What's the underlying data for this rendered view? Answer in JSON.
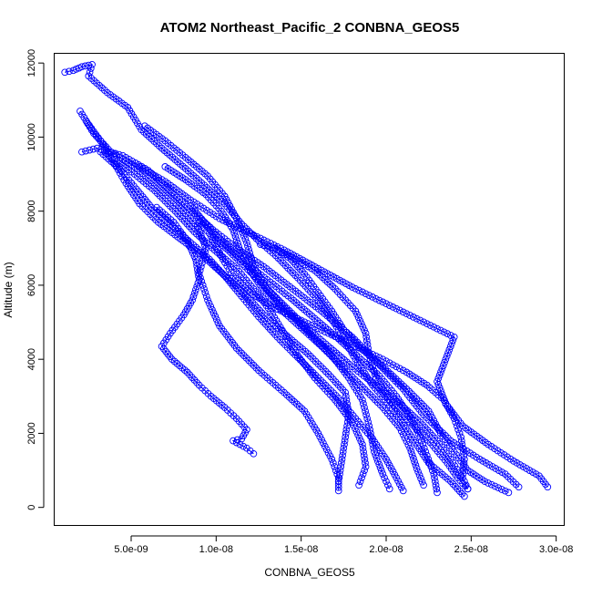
{
  "chart_data": {
    "type": "scatter",
    "title": "ATOM2 Northeast_Pacific_2 CONBNA_GEOS5",
    "xlabel": "CONBNA_GEOS5",
    "ylabel": "Altitude (m)",
    "xlim": [
      5e-10,
      3.05e-08
    ],
    "ylim": [
      -500,
      12250
    ],
    "x_ticks": [
      {
        "value": 5e-09,
        "label": "5.0e-09"
      },
      {
        "value": 1e-08,
        "label": "1.0e-08"
      },
      {
        "value": 1.5e-08,
        "label": "1.5e-08"
      },
      {
        "value": 2e-08,
        "label": "2.0e-08"
      },
      {
        "value": 2.5e-08,
        "label": "2.5e-08"
      },
      {
        "value": 3e-08,
        "label": "3.0e-08"
      }
    ],
    "y_ticks": [
      {
        "value": 0,
        "label": "0"
      },
      {
        "value": 2000,
        "label": "2000"
      },
      {
        "value": 4000,
        "label": "4000"
      },
      {
        "value": 6000,
        "label": "6000"
      },
      {
        "value": 8000,
        "label": "8000"
      },
      {
        "value": 10000,
        "label": "10000"
      },
      {
        "value": 12000,
        "label": "12000"
      }
    ],
    "grid": false,
    "marker": "open-circle",
    "color": "#0000ff",
    "connected": true,
    "series": [
      {
        "profile": "descent-1",
        "points": [
          [
            1.1e-09,
            11750
          ],
          [
            1.6e-09,
            11800
          ],
          [
            2.1e-09,
            11900
          ],
          [
            2.7e-09,
            11960
          ],
          [
            2.5e-09,
            11650
          ],
          [
            3.6e-09,
            11200
          ],
          [
            4.8e-09,
            10800
          ],
          [
            5.6e-09,
            10200
          ],
          [
            6.8e-09,
            9700
          ],
          [
            8.2e-09,
            9150
          ],
          [
            9.3e-09,
            8700
          ],
          [
            1.05e-08,
            8200
          ],
          [
            1.15e-08,
            7650
          ],
          [
            1.25e-08,
            7200
          ],
          [
            1.35e-08,
            6800
          ],
          [
            1.48e-08,
            6200
          ],
          [
            1.6e-08,
            5600
          ],
          [
            1.72e-08,
            4800
          ],
          [
            1.82e-08,
            4000
          ],
          [
            1.92e-08,
            3300
          ],
          [
            2.05e-08,
            2600
          ],
          [
            2.15e-08,
            1900
          ],
          [
            2.25e-08,
            1200
          ],
          [
            2.38e-08,
            700
          ],
          [
            2.46e-08,
            300
          ]
        ]
      },
      {
        "profile": "ascent-1",
        "points": [
          [
            2.78e-08,
            550
          ],
          [
            2.7e-08,
            900
          ],
          [
            2.55e-08,
            1300
          ],
          [
            2.38e-08,
            1800
          ],
          [
            2.22e-08,
            2500
          ],
          [
            2.1e-08,
            3200
          ],
          [
            1.95e-08,
            3900
          ],
          [
            1.8e-08,
            4600
          ],
          [
            1.62e-08,
            5300
          ],
          [
            1.45e-08,
            5900
          ],
          [
            1.28e-08,
            6500
          ],
          [
            1.12e-08,
            7000
          ],
          [
            9.8e-09,
            7500
          ],
          [
            8.6e-09,
            8000
          ],
          [
            7.4e-09,
            8500
          ],
          [
            6e-09,
            9100
          ],
          [
            4.5e-09,
            9500
          ],
          [
            3e-09,
            9700
          ],
          [
            2.1e-09,
            9600
          ]
        ]
      },
      {
        "profile": "descent-2",
        "points": [
          [
            2e-09,
            10700
          ],
          [
            2.8e-09,
            10100
          ],
          [
            3.8e-09,
            9600
          ],
          [
            5.2e-09,
            9200
          ],
          [
            6.5e-09,
            8700
          ],
          [
            7.8e-09,
            8150
          ],
          [
            8.9e-09,
            7600
          ],
          [
            9.4e-09,
            7000
          ],
          [
            9e-09,
            6300
          ],
          [
            9.5e-09,
            5600
          ],
          [
            1.02e-08,
            4900
          ],
          [
            1.12e-08,
            4300
          ],
          [
            1.25e-08,
            3700
          ],
          [
            1.4e-08,
            3100
          ],
          [
            1.52e-08,
            2600
          ],
          [
            1.6e-08,
            2000
          ],
          [
            1.68e-08,
            1300
          ],
          [
            1.72e-08,
            800
          ],
          [
            1.72e-08,
            450
          ]
        ]
      },
      {
        "profile": "descent-3",
        "points": [
          [
            5.8e-09,
            10300
          ],
          [
            7e-09,
            9900
          ],
          [
            8.2e-09,
            9450
          ],
          [
            9.5e-09,
            8950
          ],
          [
            1.05e-08,
            8400
          ],
          [
            1.12e-08,
            7800
          ],
          [
            1.18e-08,
            7150
          ],
          [
            1.22e-08,
            6500
          ],
          [
            1.3e-08,
            5900
          ],
          [
            1.42e-08,
            5300
          ],
          [
            1.55e-08,
            4700
          ],
          [
            1.68e-08,
            4100
          ],
          [
            1.78e-08,
            3500
          ],
          [
            1.86e-08,
            2900
          ],
          [
            1.9e-08,
            2200
          ],
          [
            1.93e-08,
            1500
          ],
          [
            1.98e-08,
            900
          ],
          [
            2.02e-08,
            500
          ]
        ]
      },
      {
        "profile": "ascent-2",
        "points": [
          [
            2.95e-08,
            550
          ],
          [
            2.9e-08,
            850
          ],
          [
            2.75e-08,
            1250
          ],
          [
            2.6e-08,
            1700
          ],
          [
            2.45e-08,
            2200
          ],
          [
            2.35e-08,
            2800
          ],
          [
            2.3e-08,
            3400
          ],
          [
            2.35e-08,
            4000
          ],
          [
            2.4e-08,
            4600
          ],
          [
            2.2e-08,
            5050
          ],
          [
            2e-08,
            5500
          ],
          [
            1.8e-08,
            5950
          ],
          [
            1.6e-08,
            6450
          ],
          [
            1.4e-08,
            6950
          ],
          [
            1.2e-08,
            7400
          ],
          [
            1.02e-08,
            7800
          ],
          [
            8.5e-09,
            8300
          ],
          [
            7e-09,
            8800
          ],
          [
            5.5e-09,
            9200
          ]
        ]
      },
      {
        "profile": "descent-4",
        "points": [
          [
            6.5e-09,
            8100
          ],
          [
            7.5e-09,
            7700
          ],
          [
            8.3e-09,
            7200
          ],
          [
            8.8e-09,
            6700
          ],
          [
            9e-09,
            6150
          ],
          [
            8.6e-09,
            5600
          ],
          [
            8.1e-09,
            5200
          ],
          [
            7.3e-09,
            4700
          ],
          [
            6.8e-09,
            4350
          ],
          [
            7.4e-09,
            4000
          ],
          [
            8.3e-09,
            3650
          ],
          [
            9e-09,
            3300
          ],
          [
            9.7e-09,
            3000
          ],
          [
            1.05e-08,
            2700
          ],
          [
            1.12e-08,
            2400
          ],
          [
            1.18e-08,
            2100
          ],
          [
            1.15e-08,
            1850
          ],
          [
            1.1e-08,
            1800
          ],
          [
            1.18e-08,
            1600
          ],
          [
            1.22e-08,
            1450
          ]
        ]
      },
      {
        "profile": "descent-5",
        "points": [
          [
            4e-09,
            9400
          ],
          [
            5.2e-09,
            9000
          ],
          [
            6.4e-09,
            8550
          ],
          [
            7.6e-09,
            8000
          ],
          [
            8.7e-09,
            7450
          ],
          [
            9.9e-09,
            6950
          ],
          [
            1.12e-08,
            6450
          ],
          [
            1.22e-08,
            5900
          ],
          [
            1.32e-08,
            5300
          ],
          [
            1.4e-08,
            4700
          ],
          [
            1.48e-08,
            4100
          ],
          [
            1.58e-08,
            3500
          ],
          [
            1.7e-08,
            2900
          ],
          [
            1.8e-08,
            2300
          ],
          [
            1.86e-08,
            1700
          ],
          [
            1.88e-08,
            1100
          ],
          [
            1.84e-08,
            600
          ]
        ]
      },
      {
        "profile": "ascent-3",
        "points": [
          [
            2.72e-08,
            400
          ],
          [
            2.58e-08,
            700
          ],
          [
            2.48e-08,
            1000
          ],
          [
            2.4e-08,
            1500
          ],
          [
            2.32e-08,
            2000
          ],
          [
            2.25e-08,
            2600
          ],
          [
            2.12e-08,
            3200
          ],
          [
            1.98e-08,
            3800
          ],
          [
            1.85e-08,
            4300
          ],
          [
            1.75e-08,
            4800
          ],
          [
            1.68e-08,
            5300
          ],
          [
            1.6e-08,
            5800
          ],
          [
            1.52e-08,
            6300
          ],
          [
            1.44e-08,
            6700
          ],
          [
            1.35e-08,
            7000
          ],
          [
            1.26e-08,
            7100
          ]
        ]
      },
      {
        "profile": "descent-6",
        "points": [
          [
            7e-09,
            9200
          ],
          [
            8.2e-09,
            8850
          ],
          [
            9.4e-09,
            8450
          ],
          [
            1.03e-08,
            8000
          ],
          [
            1.1e-08,
            7500
          ],
          [
            1.14e-08,
            6950
          ],
          [
            1.2e-08,
            6400
          ],
          [
            1.28e-08,
            5850
          ],
          [
            1.38e-08,
            5350
          ],
          [
            1.5e-08,
            4850
          ],
          [
            1.62e-08,
            4350
          ],
          [
            1.74e-08,
            3800
          ],
          [
            1.86e-08,
            3250
          ],
          [
            1.98e-08,
            2700
          ],
          [
            2.08e-08,
            2150
          ],
          [
            2.14e-08,
            1600
          ],
          [
            2.18e-08,
            1050
          ],
          [
            2.22e-08,
            600
          ]
        ]
      },
      {
        "profile": "descent-7",
        "points": [
          [
            3.2e-09,
            9600
          ],
          [
            4.3e-09,
            9150
          ],
          [
            5.3e-09,
            8600
          ],
          [
            6.2e-09,
            8100
          ],
          [
            7.3e-09,
            7650
          ],
          [
            8.5e-09,
            7150
          ],
          [
            9.6e-09,
            6700
          ],
          [
            1.06e-08,
            6200
          ],
          [
            1.15e-08,
            5700
          ],
          [
            1.25e-08,
            5150
          ],
          [
            1.36e-08,
            4600
          ],
          [
            1.48e-08,
            4050
          ],
          [
            1.6e-08,
            3500
          ],
          [
            1.72e-08,
            2950
          ],
          [
            1.82e-08,
            2400
          ],
          [
            1.92e-08,
            1850
          ],
          [
            2e-08,
            1300
          ],
          [
            2.06e-08,
            800
          ],
          [
            2.1e-08,
            450
          ]
        ]
      },
      {
        "profile": "ascent-4",
        "points": [
          [
            2.48e-08,
            500
          ],
          [
            2.42e-08,
            800
          ],
          [
            2.36e-08,
            1200
          ],
          [
            2.26e-08,
            1750
          ],
          [
            2.14e-08,
            2300
          ],
          [
            2.02e-08,
            2900
          ],
          [
            1.94e-08,
            3500
          ],
          [
            1.9e-08,
            4100
          ],
          [
            1.88e-08,
            4700
          ],
          [
            1.82e-08,
            5300
          ],
          [
            1.7e-08,
            5900
          ],
          [
            1.58e-08,
            6400
          ],
          [
            1.45e-08,
            6750
          ],
          [
            1.34e-08,
            7000
          ]
        ]
      },
      {
        "profile": "descent-8",
        "points": [
          [
            2.4e-09,
            10400
          ],
          [
            3.2e-09,
            9900
          ],
          [
            4e-09,
            9300
          ],
          [
            4.7e-09,
            8750
          ],
          [
            5.5e-09,
            8200
          ],
          [
            6.6e-09,
            7700
          ],
          [
            7.9e-09,
            7250
          ],
          [
            9.2e-09,
            6800
          ],
          [
            1.04e-08,
            6300
          ],
          [
            1.16e-08,
            5800
          ],
          [
            1.27e-08,
            5250
          ],
          [
            1.4e-08,
            4700
          ],
          [
            1.54e-08,
            4150
          ],
          [
            1.66e-08,
            3600
          ],
          [
            1.76e-08,
            3100
          ],
          [
            1.78e-08,
            2500
          ],
          [
            1.76e-08,
            1900
          ],
          [
            1.74e-08,
            1300
          ],
          [
            1.72e-08,
            700
          ]
        ]
      },
      {
        "profile": "ascent-5",
        "points": [
          [
            2.3e-08,
            400
          ],
          [
            2.28e-08,
            900
          ],
          [
            2.24e-08,
            1400
          ],
          [
            2.2e-08,
            1900
          ],
          [
            2.14e-08,
            2450
          ],
          [
            2.06e-08,
            3000
          ],
          [
            1.96e-08,
            3550
          ],
          [
            1.84e-08,
            4050
          ],
          [
            1.72e-08,
            4550
          ],
          [
            1.58e-08,
            5100
          ],
          [
            1.44e-08,
            5650
          ],
          [
            1.3e-08,
            6150
          ],
          [
            1.16e-08,
            6650
          ],
          [
            1.04e-08,
            7150
          ],
          [
            9.4e-09,
            7650
          ],
          [
            8.5e-09,
            8150
          ]
        ]
      },
      {
        "profile": "descent-9",
        "points": [
          [
            9e-09,
            7700
          ],
          [
            9.6e-09,
            7400
          ],
          [
            1e-08,
            7050
          ],
          [
            1.04e-08,
            6700
          ],
          [
            1.1e-08,
            6250
          ],
          [
            1.2e-08,
            5800
          ],
          [
            1.34e-08,
            5400
          ],
          [
            1.5e-08,
            5050
          ],
          [
            1.66e-08,
            4700
          ],
          [
            1.82e-08,
            4350
          ],
          [
            1.98e-08,
            4000
          ],
          [
            2.12e-08,
            3650
          ],
          [
            2.24e-08,
            3300
          ],
          [
            2.34e-08,
            2900
          ],
          [
            2.4e-08,
            2400
          ],
          [
            2.44e-08,
            1900
          ],
          [
            2.46e-08,
            1300
          ],
          [
            2.45e-08,
            800
          ],
          [
            2.48e-08,
            500
          ]
        ]
      },
      {
        "profile": "ascent-6",
        "points": [
          [
            2.44e-08,
            850
          ],
          [
            2.38e-08,
            1300
          ],
          [
            2.3e-08,
            1800
          ],
          [
            2.2e-08,
            2300
          ],
          [
            2.08e-08,
            2800
          ],
          [
            1.94e-08,
            3300
          ],
          [
            1.8e-08,
            3800
          ],
          [
            1.66e-08,
            4350
          ],
          [
            1.52e-08,
            4900
          ],
          [
            1.4e-08,
            5450
          ],
          [
            1.28e-08,
            6000
          ],
          [
            1.17e-08,
            6500
          ],
          [
            1.07e-08,
            6950
          ],
          [
            9.8e-09,
            7300
          ]
        ]
      }
    ]
  }
}
